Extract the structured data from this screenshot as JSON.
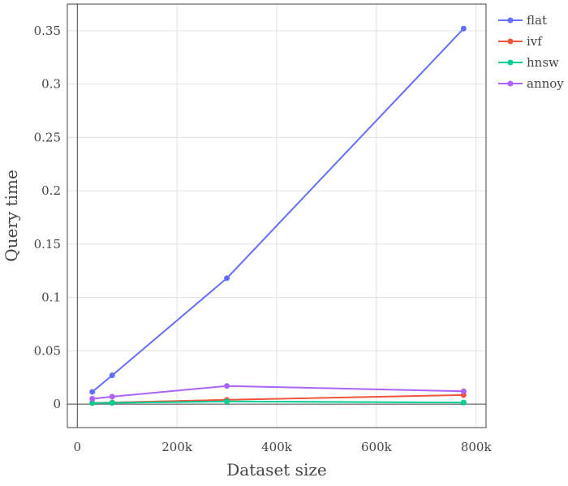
{
  "chart_data": {
    "type": "line",
    "title": "",
    "xlabel": "Dataset size",
    "ylabel": "Query time",
    "xlim": [
      -20000,
      820000
    ],
    "ylim": [
      -0.022,
      0.375
    ],
    "x_ticks": [
      0,
      200000,
      400000,
      600000,
      800000
    ],
    "x_tick_labels": [
      "0",
      "200k",
      "400k",
      "600k",
      "800k"
    ],
    "y_ticks": [
      0,
      0.05,
      0.1,
      0.15,
      0.2,
      0.25,
      0.3,
      0.35
    ],
    "y_tick_labels": [
      "0",
      "0.05",
      "0.1",
      "0.15",
      "0.2",
      "0.25",
      "0.3",
      "0.35"
    ],
    "grid": true,
    "legend_position": "top-right",
    "series": [
      {
        "name": "flat",
        "color": "#636efa",
        "x": [
          30000,
          70000,
          300000,
          775000
        ],
        "y": [
          0.0115,
          0.027,
          0.118,
          0.352
        ]
      },
      {
        "name": "ivf",
        "color": "#ef553b",
        "x": [
          30000,
          70000,
          300000,
          775000
        ],
        "y": [
          0.001,
          0.0015,
          0.004,
          0.0085
        ]
      },
      {
        "name": "hnsw",
        "color": "#00cc96",
        "x": [
          30000,
          70000,
          300000,
          775000
        ],
        "y": [
          0.001,
          0.0012,
          0.0025,
          0.0015
        ]
      },
      {
        "name": "annoy",
        "color": "#ab63fa",
        "x": [
          30000,
          70000,
          300000,
          775000
        ],
        "y": [
          0.005,
          0.007,
          0.017,
          0.012
        ]
      }
    ]
  }
}
